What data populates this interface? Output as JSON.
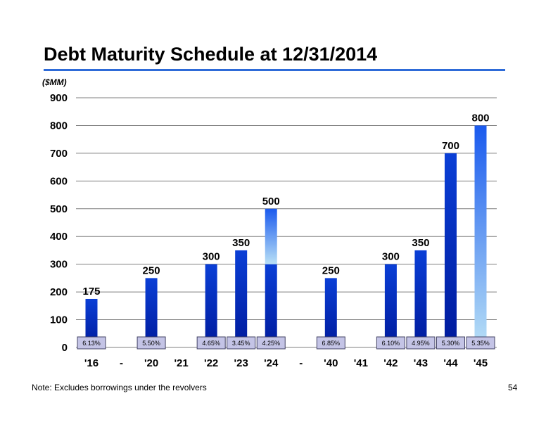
{
  "header": {
    "title": "Debt Maturity Schedule at 12/31/2014",
    "unit_label": "($MM)",
    "rule_color": "#2e6bd8"
  },
  "footer": {
    "note": "Note: Excludes borrowings under the revolvers",
    "page_number": "54"
  },
  "chart_data": {
    "type": "bar",
    "title": "Debt Maturity Schedule at 12/31/2014",
    "ylabel": "($MM)",
    "xlabel": "",
    "ylim": [
      0,
      900
    ],
    "yticks": [
      0,
      100,
      200,
      300,
      400,
      500,
      600,
      700,
      800,
      900
    ],
    "grid": true,
    "categories": [
      "'16",
      "-",
      "'20",
      "'21",
      "'22",
      "'23",
      "'24",
      "-",
      "'40",
      "'41",
      "'42",
      "'43",
      "'44",
      "'45"
    ],
    "values": [
      175,
      null,
      250,
      null,
      300,
      350,
      500,
      null,
      250,
      null,
      300,
      350,
      700,
      800
    ],
    "data_labels": [
      "175",
      "",
      "250",
      "",
      "300",
      "350",
      "500",
      "",
      "250",
      "",
      "300",
      "350",
      "700",
      "800"
    ],
    "stacked_segments": [
      [
        {
          "value": 175,
          "style": "dark"
        }
      ],
      [],
      [
        {
          "value": 250,
          "style": "dark"
        }
      ],
      [],
      [
        {
          "value": 300,
          "style": "dark"
        }
      ],
      [
        {
          "value": 350,
          "style": "dark"
        }
      ],
      [
        {
          "value": 300,
          "style": "dark"
        },
        {
          "value": 200,
          "style": "light"
        }
      ],
      [],
      [
        {
          "value": 250,
          "style": "dark"
        }
      ],
      [],
      [
        {
          "value": 300,
          "style": "dark"
        }
      ],
      [
        {
          "value": 350,
          "style": "dark"
        }
      ],
      [
        {
          "value": 700,
          "style": "dark"
        }
      ],
      [
        {
          "value": 800,
          "style": "light"
        }
      ]
    ],
    "rate_labels": [
      "6.13%",
      "",
      "5.50%",
      "",
      "4.65%",
      "3.45%",
      "4.25%",
      "",
      "6.85%",
      "",
      "6.10%",
      "4.95%",
      "5.30%",
      "5.35%"
    ],
    "colors": {
      "dark_top": "#0a3fd6",
      "dark_bottom": "#001a9c",
      "light_top": "#1a5aee",
      "light_bottom": "#b8e0f6",
      "grid": "#7f7f7f",
      "rate_box_fill": "#c4c4e6",
      "rate_box_border": "#444466"
    }
  }
}
